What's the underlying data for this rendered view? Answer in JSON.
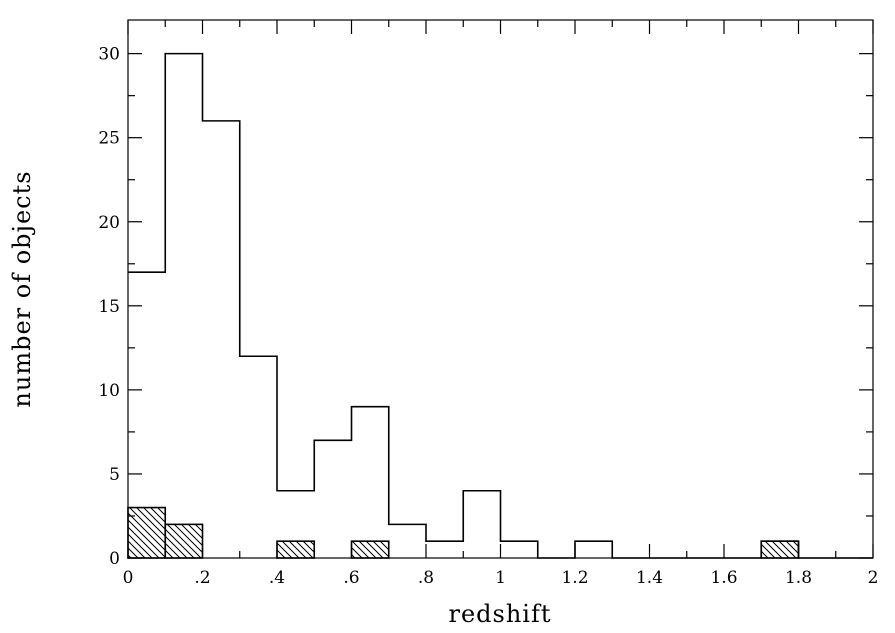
{
  "chart_data": {
    "type": "bar",
    "xlabel": "redshift",
    "ylabel": "number of objects",
    "xlim": [
      0,
      2
    ],
    "ylim": [
      0,
      32
    ],
    "grid": false,
    "x_tick_values": [
      0,
      0.2,
      0.4,
      0.6,
      0.8,
      1,
      1.2,
      1.4,
      1.6,
      1.8,
      2
    ],
    "x_tick_labels": [
      "0",
      ".2",
      ".4",
      ".6",
      ".8",
      "1",
      "1.2",
      "1.4",
      "1.6",
      "1.8",
      "2"
    ],
    "y_tick_values": [
      0,
      5,
      10,
      15,
      20,
      25,
      30
    ],
    "y_tick_labels": [
      "0",
      "5",
      "10",
      "15",
      "20",
      "25",
      "30"
    ],
    "bin_width": 0.1,
    "bin_starts": [
      0,
      0.1,
      0.2,
      0.3,
      0.4,
      0.5,
      0.6,
      0.7,
      0.8,
      0.9,
      1.0,
      1.1,
      1.2,
      1.3,
      1.4,
      1.5,
      1.6,
      1.7,
      1.8,
      1.9
    ],
    "series": [
      {
        "style": "open-step",
        "values": [
          17,
          30,
          26,
          12,
          4,
          7,
          9,
          2,
          1,
          4,
          1,
          0,
          1,
          0,
          0,
          0,
          0,
          1,
          0,
          0
        ]
      },
      {
        "style": "hatched",
        "values": [
          3,
          2,
          0,
          0,
          1,
          0,
          1,
          0,
          0,
          0,
          0,
          0,
          0,
          0,
          0,
          0,
          0,
          1,
          0,
          0
        ]
      }
    ]
  }
}
